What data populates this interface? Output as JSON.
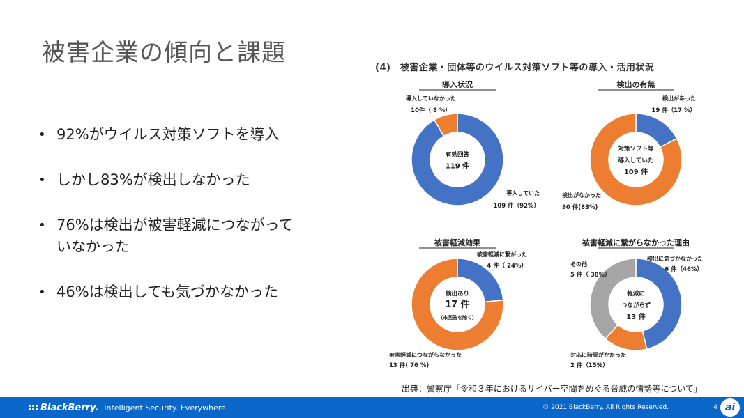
{
  "title": "被害企業の傾向と課題",
  "bullets": [
    "92%がウイルス対策ソフトを導入",
    "しかし83%が検出しなかった",
    "76%は検出が被害軽減につながって\nいなかった",
    "46%は検出しても気づかなかった"
  ],
  "panel_title": "(4)　被害企業・団体等のウイルス対策ソフト等の導入・活用状況",
  "source": "出典：警察庁「令和３年におけるサイバー空間をめぐる脅威の情勢等について」",
  "footer": {
    "brand": "BlackBerry.",
    "tagline": "Intelligent Security. Everywhere.",
    "copyright": "© 2021 BlackBerry. All Rights Reserved.",
    "page": "4",
    "corner_logo": "ai"
  },
  "colors": {
    "blue": "#4472c4",
    "orange": "#ed7d31",
    "gray": "#a5a5a5",
    "footer": "#0a66c8"
  },
  "chart_data": [
    {
      "type": "pie",
      "title": "導入状況",
      "center": [
        "有効回答",
        "119 件"
      ],
      "slices": [
        {
          "label": "導入していた",
          "count": "109 件（92%）",
          "value": 109,
          "color": "#4472c4"
        },
        {
          "label": "導入していなかった",
          "count": "10件（ 8 %）",
          "value": 10,
          "color": "#ed7d31"
        }
      ]
    },
    {
      "type": "pie",
      "title": "検出の有無",
      "center": [
        "対策ソフト等",
        "導入していた",
        "109 件"
      ],
      "slices": [
        {
          "label": "検出があった",
          "count": "19 件（17 %）",
          "value": 19,
          "color": "#4472c4"
        },
        {
          "label": "検出がなかった",
          "count": "90 件(83%)",
          "value": 90,
          "color": "#ed7d31"
        }
      ]
    },
    {
      "type": "pie",
      "title": "被害軽減効果",
      "center": [
        "検出あり",
        "17 件",
        "（未回答を除く）"
      ],
      "slices": [
        {
          "label": "被害軽減に繋がった",
          "count": "4 件（ 24%）",
          "value": 4,
          "color": "#4472c4"
        },
        {
          "label": "被害軽減につながらなかった",
          "count": "13 件( 76 %)",
          "value": 13,
          "color": "#ed7d31"
        }
      ]
    },
    {
      "type": "pie",
      "title": "被害軽減に繋がらなかった理由",
      "center": [
        "軽減に",
        "つながらず",
        "13 件"
      ],
      "slices": [
        {
          "label": "検出に気づかなかった",
          "count": "6 件（46%）",
          "value": 6,
          "color": "#4472c4"
        },
        {
          "label": "対応に時間がかかった",
          "count": "2 件（15％）",
          "value": 2,
          "color": "#ed7d31"
        },
        {
          "label": "その他",
          "count": "5 件（ 38％）",
          "value": 5,
          "color": "#a5a5a5"
        }
      ]
    }
  ]
}
